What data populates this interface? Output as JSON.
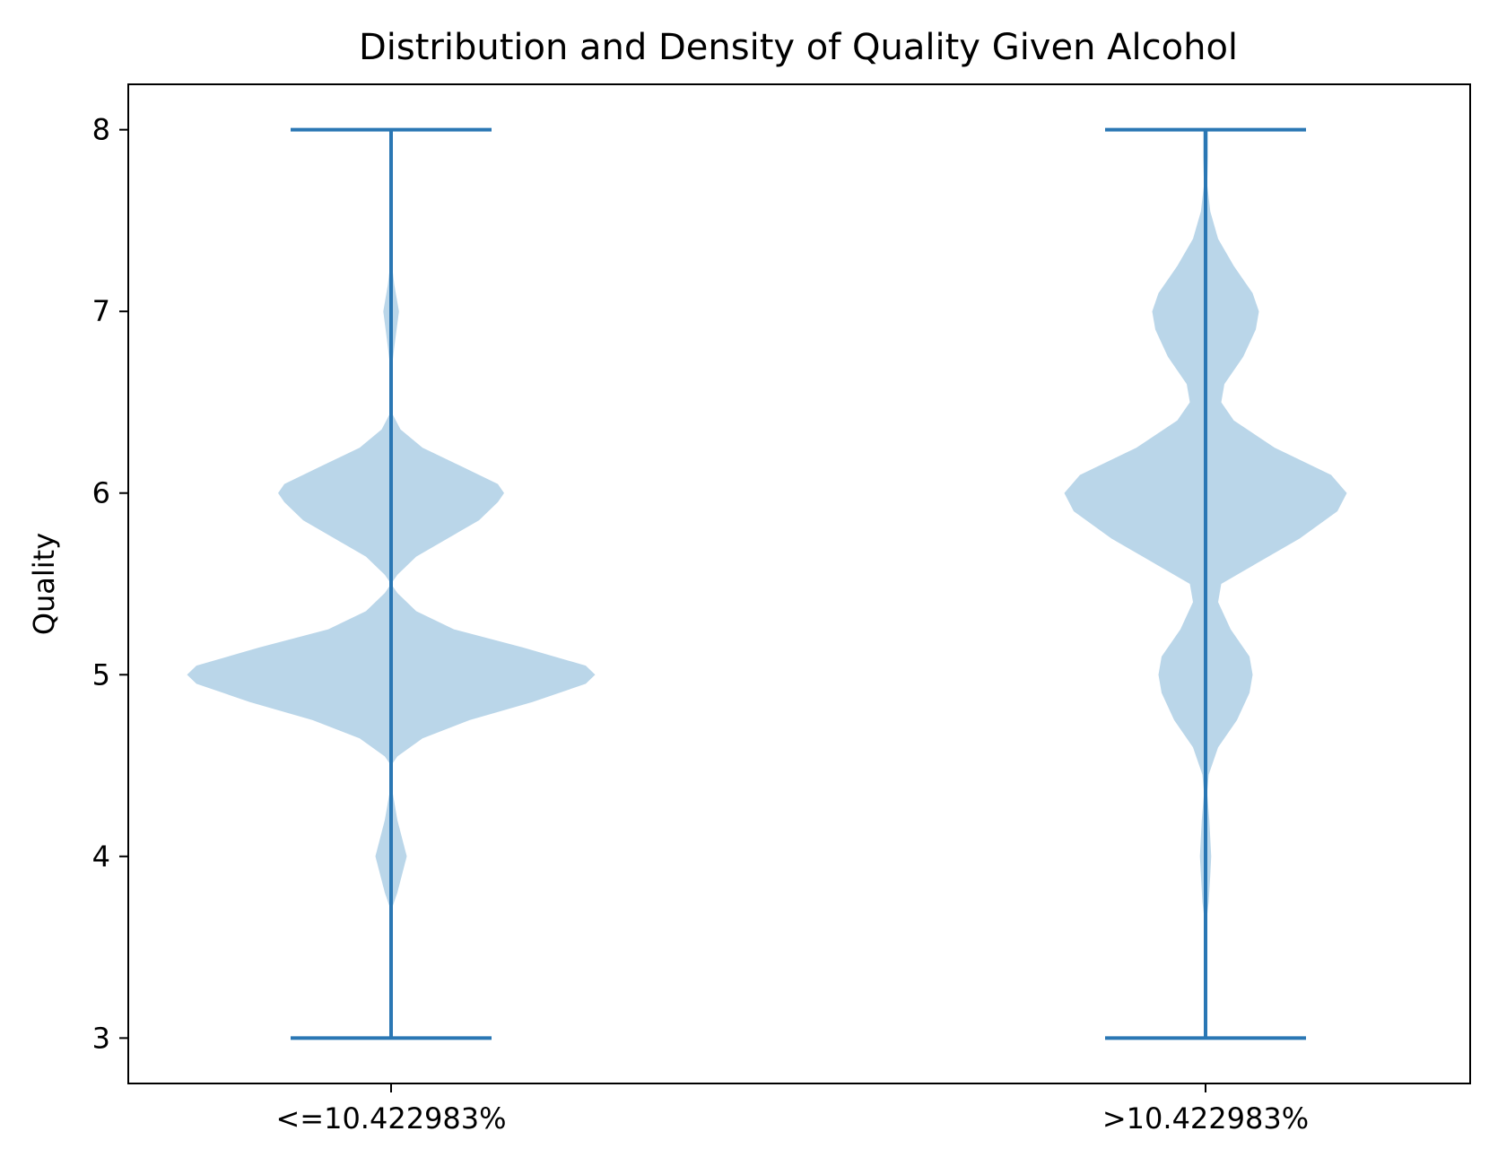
{
  "chart_data": {
    "type": "violin",
    "title": "Distribution and Density of Quality Given Alcohol",
    "xlabel": "",
    "ylabel": "Quality",
    "ylim": [
      2.75,
      8.25
    ],
    "yticks": [
      3,
      4,
      5,
      6,
      7,
      8
    ],
    "categories": [
      "<=10.422983%",
      ">10.422983%"
    ],
    "violins": [
      {
        "category": "<=10.422983%",
        "min": 3,
        "max": 8,
        "density": [
          [
            3.0,
            0
          ],
          [
            3.7,
            0
          ],
          [
            3.8,
            0.02
          ],
          [
            4.0,
            0.05
          ],
          [
            4.2,
            0.02
          ],
          [
            4.35,
            0.005
          ],
          [
            4.5,
            0
          ],
          [
            4.55,
            0.02
          ],
          [
            4.65,
            0.1
          ],
          [
            4.75,
            0.25
          ],
          [
            4.85,
            0.45
          ],
          [
            4.95,
            0.62
          ],
          [
            5.0,
            0.65
          ],
          [
            5.05,
            0.62
          ],
          [
            5.15,
            0.42
          ],
          [
            5.25,
            0.2
          ],
          [
            5.35,
            0.08
          ],
          [
            5.45,
            0.02
          ],
          [
            5.5,
            0
          ],
          [
            5.55,
            0.02
          ],
          [
            5.65,
            0.08
          ],
          [
            5.75,
            0.18
          ],
          [
            5.85,
            0.28
          ],
          [
            5.95,
            0.34
          ],
          [
            6.0,
            0.36
          ],
          [
            6.05,
            0.34
          ],
          [
            6.15,
            0.22
          ],
          [
            6.25,
            0.1
          ],
          [
            6.35,
            0.03
          ],
          [
            6.45,
            0
          ],
          [
            6.65,
            0
          ],
          [
            6.8,
            0.01
          ],
          [
            7.0,
            0.025
          ],
          [
            7.15,
            0.01
          ],
          [
            7.3,
            0
          ],
          [
            8.0,
            0
          ]
        ]
      },
      {
        "category": ">10.422983%",
        "min": 3,
        "max": 8,
        "density": [
          [
            3.0,
            0
          ],
          [
            3.6,
            0
          ],
          [
            3.75,
            0.01
          ],
          [
            3.9,
            0.015
          ],
          [
            4.0,
            0.018
          ],
          [
            4.2,
            0.012
          ],
          [
            4.35,
            0.005
          ],
          [
            4.45,
            0.01
          ],
          [
            4.6,
            0.04
          ],
          [
            4.75,
            0.1
          ],
          [
            4.9,
            0.14
          ],
          [
            5.0,
            0.15
          ],
          [
            5.1,
            0.14
          ],
          [
            5.25,
            0.08
          ],
          [
            5.4,
            0.04
          ],
          [
            5.5,
            0.05
          ],
          [
            5.6,
            0.15
          ],
          [
            5.75,
            0.3
          ],
          [
            5.9,
            0.42
          ],
          [
            6.0,
            0.45
          ],
          [
            6.1,
            0.4
          ],
          [
            6.25,
            0.22
          ],
          [
            6.4,
            0.09
          ],
          [
            6.5,
            0.05
          ],
          [
            6.6,
            0.06
          ],
          [
            6.75,
            0.12
          ],
          [
            6.9,
            0.16
          ],
          [
            7.0,
            0.17
          ],
          [
            7.1,
            0.15
          ],
          [
            7.25,
            0.09
          ],
          [
            7.4,
            0.04
          ],
          [
            7.55,
            0.015
          ],
          [
            7.7,
            0.005
          ],
          [
            7.85,
            0.008
          ],
          [
            8.0,
            0.008
          ]
        ]
      }
    ],
    "colors": {
      "body": "#bad6e9",
      "line": "#2a77b4"
    },
    "grid": false
  }
}
